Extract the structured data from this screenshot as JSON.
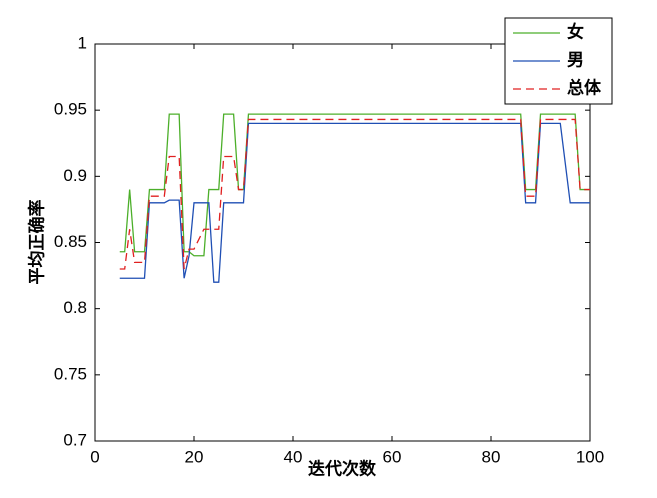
{
  "chart_data": {
    "type": "line",
    "x_label": "迭代次数",
    "y_label": "平均正确率",
    "x": [
      5,
      6,
      7,
      8,
      10,
      11,
      14,
      15,
      17,
      18,
      19,
      20,
      22,
      23,
      24,
      25,
      26,
      28,
      29,
      30,
      31,
      86,
      87,
      89,
      90,
      94,
      96,
      97,
      98,
      100
    ],
    "series": [
      {
        "name": "女",
        "color": "#4caf2a",
        "dash": "none",
        "values": [
          0.843,
          0.843,
          0.89,
          0.843,
          0.843,
          0.89,
          0.89,
          0.947,
          0.947,
          0.843,
          0.843,
          0.84,
          0.84,
          0.89,
          0.89,
          0.89,
          0.947,
          0.947,
          0.89,
          0.89,
          0.947,
          0.947,
          0.89,
          0.89,
          0.947,
          0.947,
          0.947,
          0.947,
          0.89,
          0.89
        ]
      },
      {
        "name": "男",
        "color": "#1f4fb4",
        "dash": "none",
        "values": [
          0.823,
          0.823,
          0.823,
          0.823,
          0.823,
          0.88,
          0.88,
          0.882,
          0.882,
          0.823,
          0.84,
          0.88,
          0.88,
          0.88,
          0.82,
          0.82,
          0.88,
          0.88,
          0.88,
          0.88,
          0.94,
          0.94,
          0.88,
          0.88,
          0.94,
          0.94,
          0.88,
          0.88,
          0.88,
          0.88
        ]
      },
      {
        "name": "总体",
        "color": "#e02020",
        "dash": "8,5",
        "values": [
          0.83,
          0.83,
          0.86,
          0.835,
          0.835,
          0.885,
          0.885,
          0.915,
          0.915,
          0.83,
          0.845,
          0.845,
          0.86,
          0.86,
          0.86,
          0.86,
          0.915,
          0.915,
          0.89,
          0.89,
          0.943,
          0.943,
          0.885,
          0.885,
          0.943,
          0.943,
          0.943,
          0.943,
          0.89,
          0.89
        ]
      }
    ],
    "xlim": [
      0,
      100
    ],
    "xticks": [
      0,
      20,
      40,
      60,
      80,
      100
    ],
    "ylim": [
      0.7,
      1
    ],
    "yticks": [
      0.7,
      0.75,
      0.8,
      0.85,
      0.9,
      0.95,
      1
    ],
    "legend": "upper right"
  }
}
